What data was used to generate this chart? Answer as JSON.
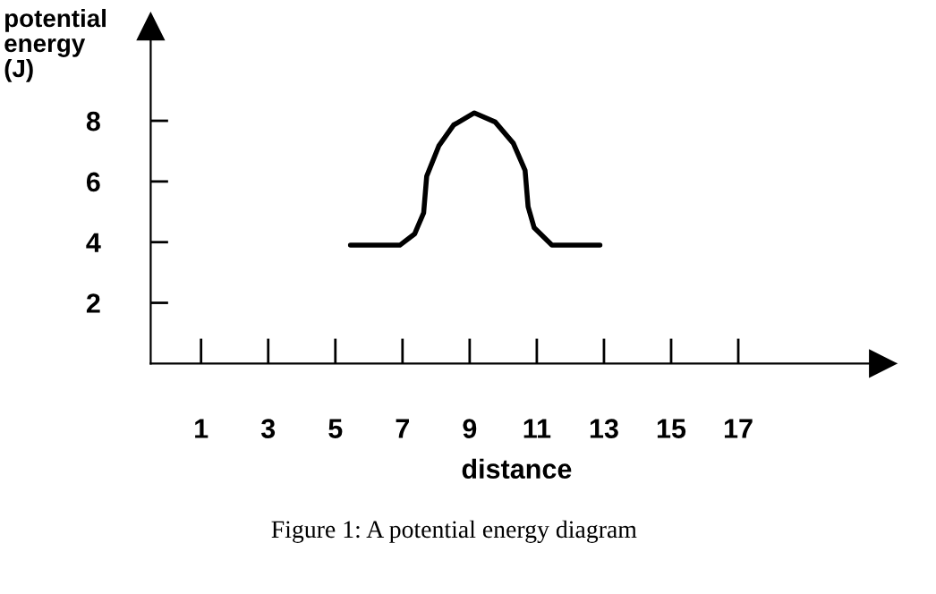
{
  "chart_data": {
    "type": "line",
    "xlabel": "distance",
    "ylabel": "potential\nenergy\n(J)",
    "annotations": [
      "Figure 1: A potential energy diagram"
    ],
    "series": [
      {
        "color": "#000000",
        "x": [
          5.45,
          6.92,
          7.36,
          7.63,
          7.72,
          8.08,
          8.52,
          9.14,
          9.76,
          10.3,
          10.65,
          10.74,
          10.92,
          11.45,
          12.88
        ],
        "values": [
          3.9,
          3.9,
          4.27,
          4.97,
          6.17,
          7.17,
          7.86,
          8.26,
          7.96,
          7.26,
          6.37,
          5.17,
          4.48,
          3.9,
          3.9
        ]
      }
    ],
    "xlim": [
      -0.5,
      21.3
    ],
    "ylim": [
      0,
      11.1
    ],
    "xticks": [
      1,
      3,
      5,
      7,
      9,
      11,
      13,
      15,
      17
    ],
    "yticks": [
      2,
      4,
      6,
      8
    ],
    "grid": false,
    "legend": false,
    "marker": "none",
    "line_style": "solid"
  }
}
